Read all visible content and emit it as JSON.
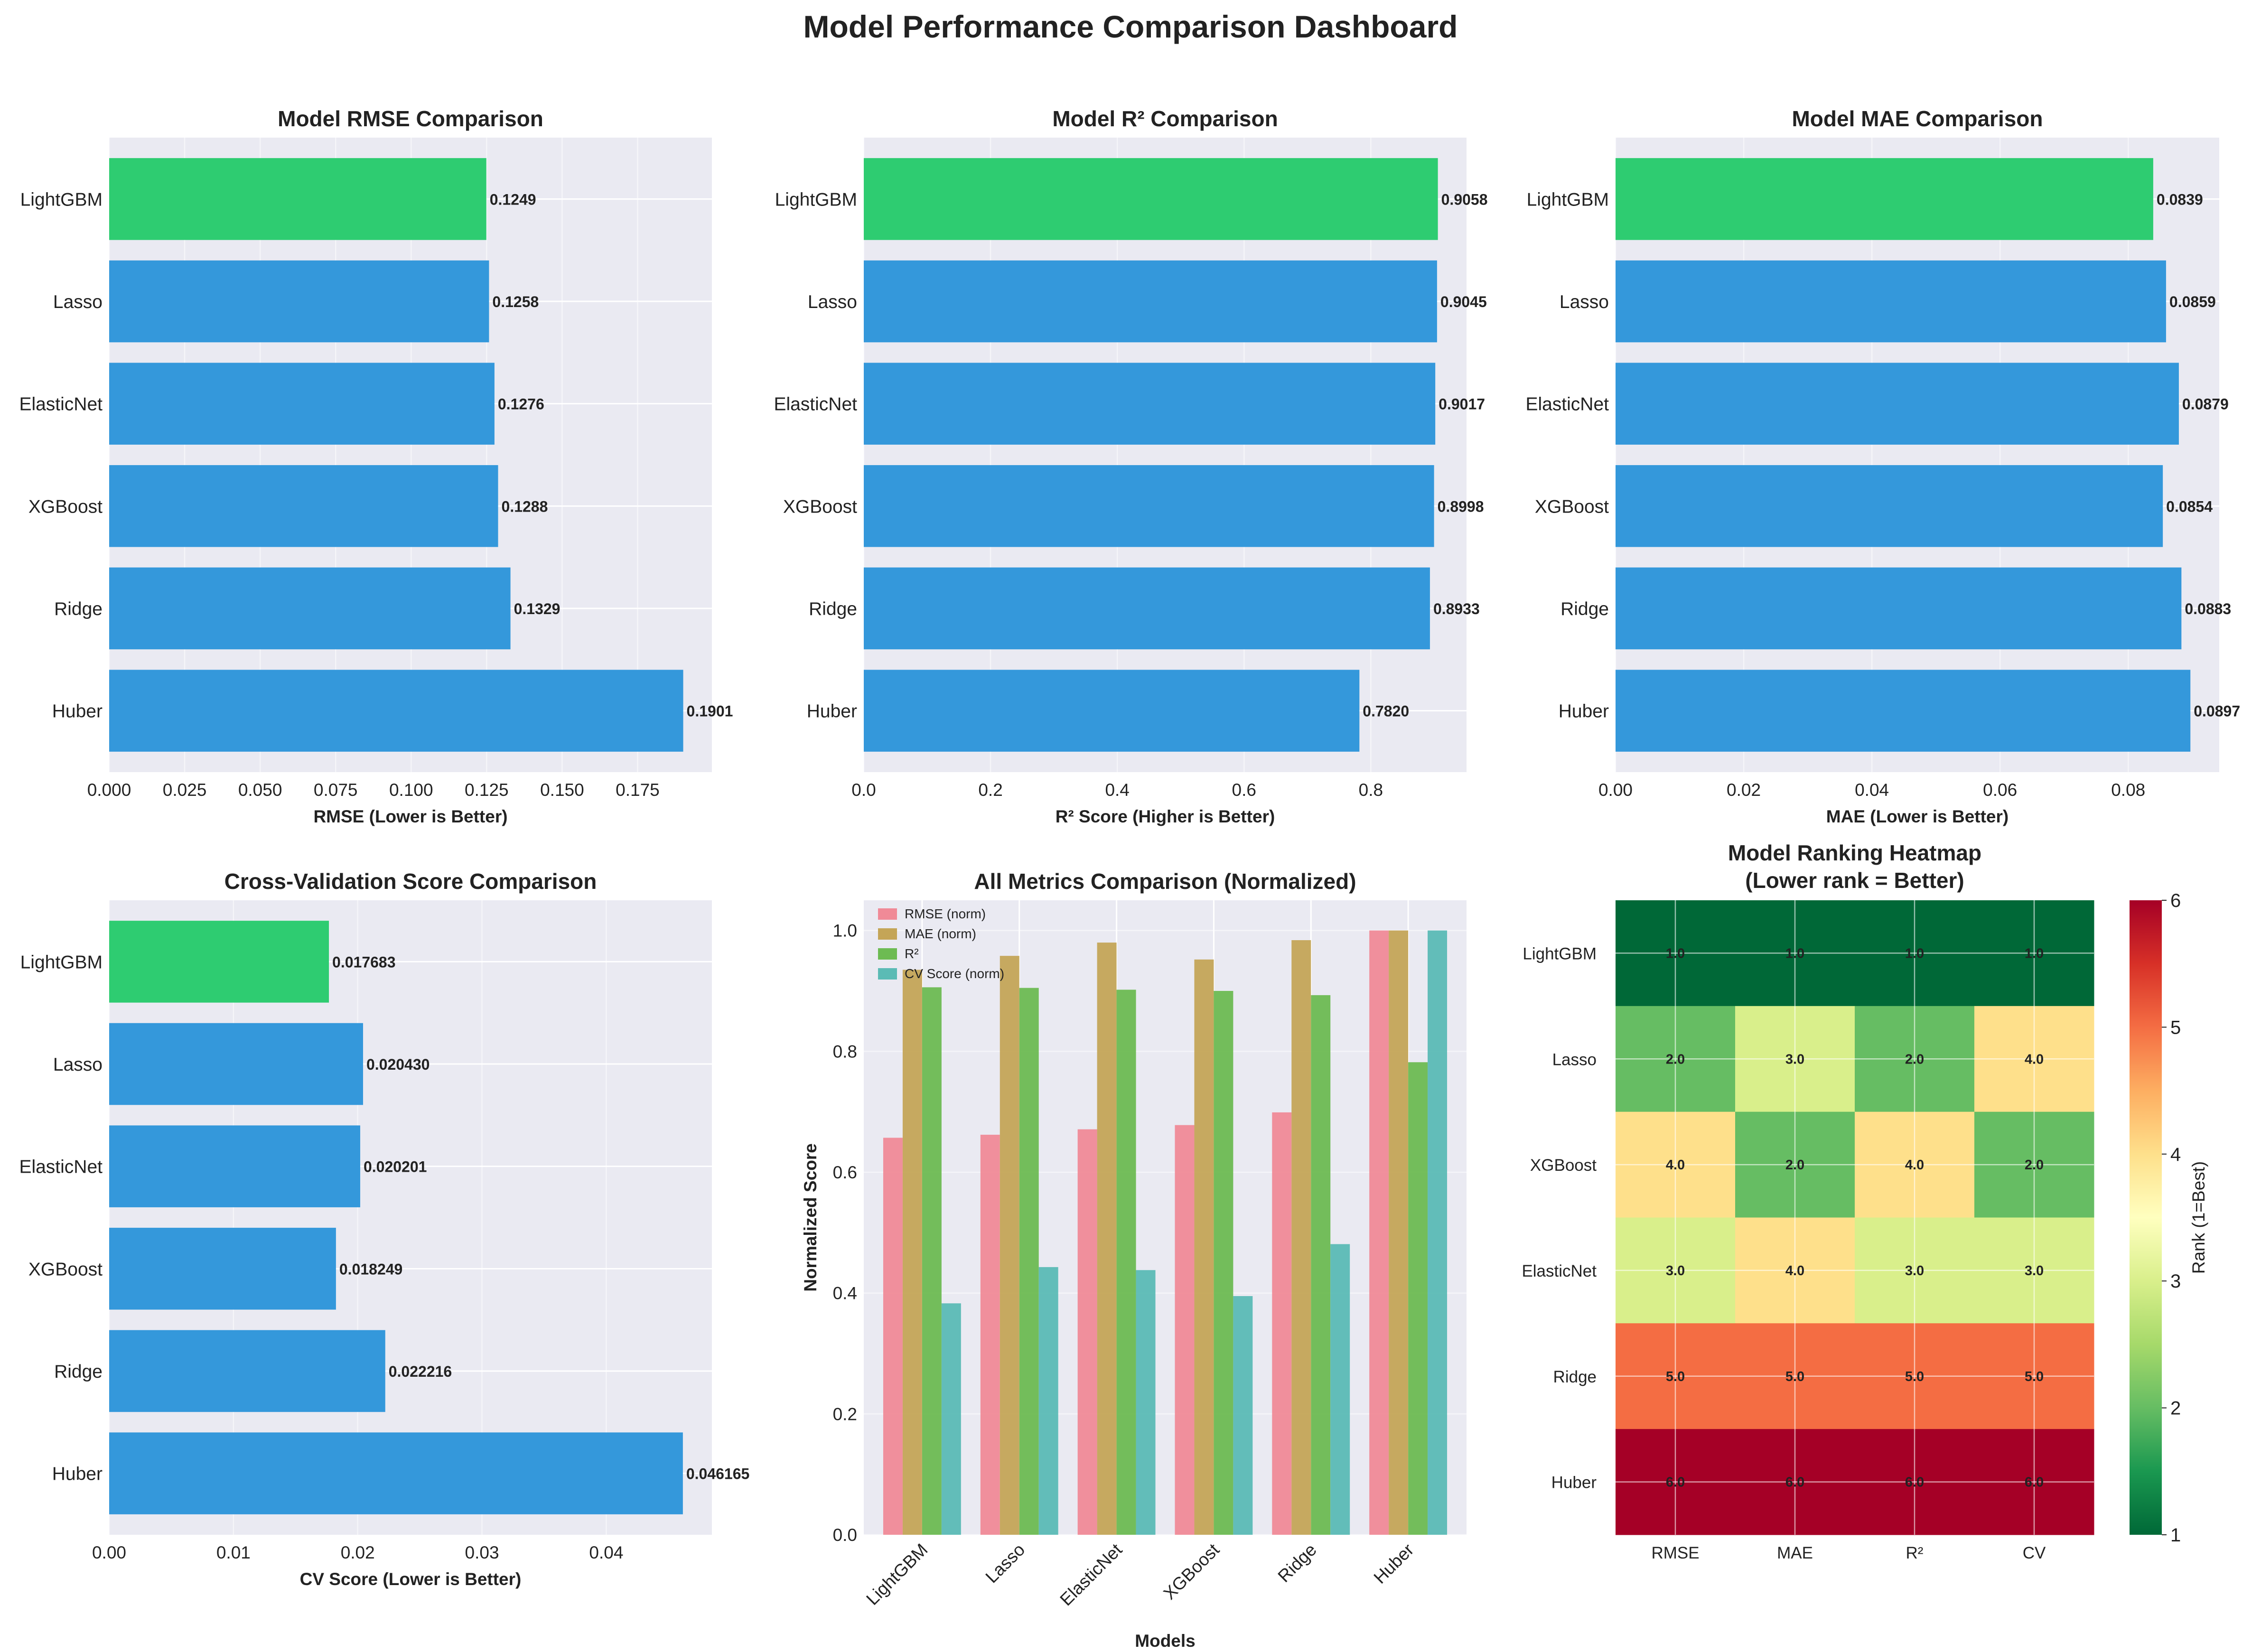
{
  "title": "Model Performance Comparison Dashboard",
  "colors": {
    "highlight": "#2ecc71",
    "bar": "#3498db",
    "panel_bg": "#eaeaf2",
    "grid": "#ffffff",
    "rmse_norm": "#f08a97",
    "mae_norm": "#c4a557",
    "r2": "#6dbb52",
    "cv_norm": "#5bbbb5"
  },
  "chart_data": [
    {
      "id": "rmse",
      "type": "bar",
      "orientation": "horizontal",
      "title": "Model RMSE Comparison",
      "xlabel": "RMSE (Lower is Better)",
      "categories": [
        "LightGBM",
        "Lasso",
        "ElasticNet",
        "XGBoost",
        "Ridge",
        "Huber"
      ],
      "values": [
        0.1249,
        0.1258,
        0.1276,
        0.1288,
        0.1329,
        0.1901
      ],
      "value_labels": [
        "0.1249",
        "0.1258",
        "0.1276",
        "0.1288",
        "0.1329",
        "0.1901"
      ],
      "highlight": "LightGBM",
      "xlim": [
        0,
        0.1996
      ],
      "xticks": [
        0,
        0.025,
        0.05,
        0.075,
        0.1,
        0.125,
        0.15,
        0.175
      ],
      "xtick_labels": [
        "0.000",
        "0.025",
        "0.050",
        "0.075",
        "0.100",
        "0.125",
        "0.150",
        "0.175"
      ]
    },
    {
      "id": "r2",
      "type": "bar",
      "orientation": "horizontal",
      "title": "Model R² Comparison",
      "xlabel": "R² Score (Higher is Better)",
      "categories": [
        "LightGBM",
        "Lasso",
        "ElasticNet",
        "XGBoost",
        "Ridge",
        "Huber"
      ],
      "values": [
        0.9058,
        0.9045,
        0.9017,
        0.8998,
        0.8933,
        0.782
      ],
      "value_labels": [
        "0.9058",
        "0.9045",
        "0.9017",
        "0.8998",
        "0.8933",
        "0.7820"
      ],
      "highlight": "LightGBM",
      "xlim": [
        0,
        0.951
      ],
      "xticks": [
        0,
        0.2,
        0.4,
        0.6,
        0.8
      ],
      "xtick_labels": [
        "0.0",
        "0.2",
        "0.4",
        "0.6",
        "0.8"
      ]
    },
    {
      "id": "mae",
      "type": "bar",
      "orientation": "horizontal",
      "title": "Model MAE Comparison",
      "xlabel": "MAE (Lower is Better)",
      "categories": [
        "LightGBM",
        "Lasso",
        "ElasticNet",
        "XGBoost",
        "Ridge",
        "Huber"
      ],
      "values": [
        0.0839,
        0.0859,
        0.0879,
        0.0854,
        0.0883,
        0.0897
      ],
      "value_labels": [
        "0.0839",
        "0.0859",
        "0.0879",
        "0.0854",
        "0.0883",
        "0.0897"
      ],
      "highlight": "LightGBM",
      "xlim": [
        0,
        0.0942
      ],
      "xticks": [
        0,
        0.02,
        0.04,
        0.06,
        0.08
      ],
      "xtick_labels": [
        "0.00",
        "0.02",
        "0.04",
        "0.06",
        "0.08"
      ]
    },
    {
      "id": "cv",
      "type": "bar",
      "orientation": "horizontal",
      "title": "Cross-Validation Score Comparison",
      "xlabel": "CV Score (Lower is Better)",
      "categories": [
        "LightGBM",
        "Lasso",
        "ElasticNet",
        "XGBoost",
        "Ridge",
        "Huber"
      ],
      "values": [
        0.017683,
        0.02043,
        0.020201,
        0.018249,
        0.022216,
        0.046165
      ],
      "value_labels": [
        "0.017683",
        "0.020430",
        "0.020201",
        "0.018249",
        "0.022216",
        "0.046165"
      ],
      "highlight": "LightGBM",
      "xlim": [
        0,
        0.0485
      ],
      "xticks": [
        0,
        0.01,
        0.02,
        0.03,
        0.04
      ],
      "xtick_labels": [
        "0.00",
        "0.01",
        "0.02",
        "0.03",
        "0.04"
      ]
    },
    {
      "id": "all",
      "type": "bar",
      "orientation": "vertical",
      "title": "All Metrics Comparison (Normalized)",
      "xlabel": "Models",
      "ylabel": "Normalized Score",
      "categories": [
        "LightGBM",
        "Lasso",
        "ElasticNet",
        "XGBoost",
        "Ridge",
        "Huber"
      ],
      "series": [
        {
          "name": "RMSE (norm)",
          "values": [
            0.657,
            0.662,
            0.671,
            0.678,
            0.699,
            1.0
          ]
        },
        {
          "name": "MAE (norm)",
          "values": [
            0.935,
            0.958,
            0.98,
            0.952,
            0.984,
            1.0
          ]
        },
        {
          "name": "R²",
          "values": [
            0.906,
            0.905,
            0.902,
            0.9,
            0.893,
            0.782
          ]
        },
        {
          "name": "CV Score (norm)",
          "values": [
            0.383,
            0.443,
            0.438,
            0.395,
            0.481,
            1.0
          ]
        }
      ],
      "ylim": [
        0,
        1.05
      ],
      "yticks": [
        0,
        0.2,
        0.4,
        0.6,
        0.8,
        1.0
      ],
      "ytick_labels": [
        "0.0",
        "0.2",
        "0.4",
        "0.6",
        "0.8",
        "1.0"
      ]
    },
    {
      "id": "heatmap",
      "type": "heatmap",
      "title": "Model Ranking Heatmap",
      "subtitle": "(Lower rank = Better)",
      "rows": [
        "LightGBM",
        "Lasso",
        "XGBoost",
        "ElasticNet",
        "Ridge",
        "Huber"
      ],
      "columns": [
        "RMSE",
        "MAE",
        "R²",
        "CV"
      ],
      "values": [
        [
          1,
          1,
          1,
          1
        ],
        [
          2,
          3,
          2,
          4
        ],
        [
          4,
          2,
          4,
          2
        ],
        [
          3,
          4,
          3,
          3
        ],
        [
          5,
          5,
          5,
          5
        ],
        [
          6,
          6,
          6,
          6
        ]
      ],
      "cell_labels": [
        [
          "1.0",
          "1.0",
          "1.0",
          "1.0"
        ],
        [
          "2.0",
          "3.0",
          "2.0",
          "4.0"
        ],
        [
          "4.0",
          "2.0",
          "4.0",
          "2.0"
        ],
        [
          "3.0",
          "4.0",
          "3.0",
          "3.0"
        ],
        [
          "5.0",
          "5.0",
          "5.0",
          "5.0"
        ],
        [
          "6.0",
          "6.0",
          "6.0",
          "6.0"
        ]
      ],
      "colorbar_label": "Rank (1=Best)",
      "colorbar_range": [
        1,
        6
      ],
      "colorbar_ticks": [
        "1",
        "2",
        "3",
        "4",
        "5",
        "6"
      ],
      "cell_colors": {
        "1": "#006837",
        "2": "#66bd63",
        "3": "#d9ef8b",
        "4": "#fee08b",
        "5": "#f46d43",
        "6": "#a50026"
      }
    }
  ]
}
